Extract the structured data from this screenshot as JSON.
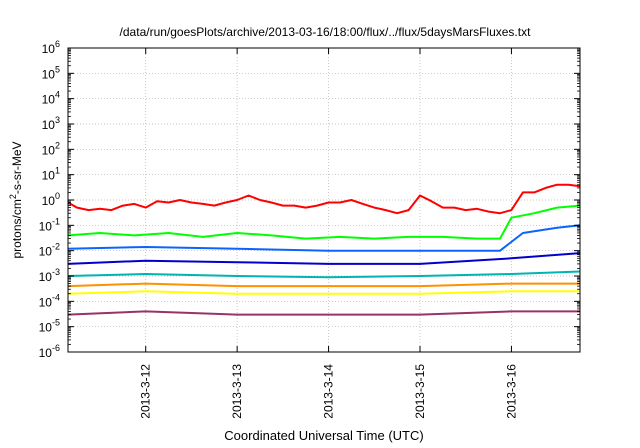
{
  "chart_data": {
    "type": "line",
    "title": "/data/run/goesPlots/archive/2013-03-16/18:00/flux/../flux/5daysMarsFluxes.txt",
    "xlabel": "Coordinated Universal Time (UTC)",
    "ylabel": {
      "pre": "protons/cm",
      "sup": "2",
      "post": "-s-sr-MeV"
    },
    "y_scale": "log",
    "ylim_exp": [
      -6,
      6
    ],
    "y_ticks": [
      {
        "base": "10",
        "exp": "-6"
      },
      {
        "base": "10",
        "exp": "-5"
      },
      {
        "base": "10",
        "exp": "-4"
      },
      {
        "base": "10",
        "exp": "-3"
      },
      {
        "base": "10",
        "exp": "-2"
      },
      {
        "base": "10",
        "exp": "-1"
      },
      {
        "base": "10",
        "exp": "0"
      },
      {
        "base": "10",
        "exp": "1"
      },
      {
        "base": "10",
        "exp": "2"
      },
      {
        "base": "10",
        "exp": "3"
      },
      {
        "base": "10",
        "exp": "4"
      },
      {
        "base": "10",
        "exp": "5"
      },
      {
        "base": "10",
        "exp": "6"
      }
    ],
    "xlim": [
      "2013-03-11 03:36",
      "2013-03-16 18:00"
    ],
    "x_ticks": [
      {
        "value": "2013-03-12",
        "label": "2013-3-12"
      },
      {
        "value": "2013-03-13",
        "label": "2013-3-13"
      },
      {
        "value": "2013-03-14",
        "label": "2013-3-14"
      },
      {
        "value": "2013-03-15",
        "label": "2013-3-15"
      },
      {
        "value": "2013-03-16",
        "label": "2013-3-16"
      }
    ],
    "grid": true,
    "legend": "none",
    "series": [
      {
        "color": "#ff0000",
        "x": [
          "2013-03-11 03:36",
          "2013-03-11 06:00",
          "2013-03-11 09:00",
          "2013-03-11 12:00",
          "2013-03-11 15:00",
          "2013-03-11 18:00",
          "2013-03-11 21:00",
          "2013-03-12 00:00",
          "2013-03-12 03:00",
          "2013-03-12 06:00",
          "2013-03-12 09:00",
          "2013-03-12 12:00",
          "2013-03-12 15:00",
          "2013-03-12 18:00",
          "2013-03-12 21:00",
          "2013-03-13 00:00",
          "2013-03-13 03:00",
          "2013-03-13 06:00",
          "2013-03-13 09:00",
          "2013-03-13 12:00",
          "2013-03-13 15:00",
          "2013-03-13 18:00",
          "2013-03-13 21:00",
          "2013-03-14 00:00",
          "2013-03-14 03:00",
          "2013-03-14 06:00",
          "2013-03-14 09:00",
          "2013-03-14 12:00",
          "2013-03-14 15:00",
          "2013-03-14 18:00",
          "2013-03-14 21:00",
          "2013-03-15 00:00",
          "2013-03-15 03:00",
          "2013-03-15 06:00",
          "2013-03-15 09:00",
          "2013-03-15 12:00",
          "2013-03-15 15:00",
          "2013-03-15 18:00",
          "2013-03-15 21:00",
          "2013-03-16 00:00",
          "2013-03-16 03:00",
          "2013-03-16 06:00",
          "2013-03-16 09:00",
          "2013-03-16 12:00",
          "2013-03-16 15:00",
          "2013-03-16 18:00"
        ],
        "y": [
          0.8,
          0.5,
          0.4,
          0.45,
          0.4,
          0.6,
          0.7,
          0.5,
          0.9,
          0.8,
          1.0,
          0.8,
          0.7,
          0.6,
          0.8,
          1.0,
          1.5,
          1.0,
          0.8,
          0.6,
          0.6,
          0.5,
          0.6,
          0.8,
          0.8,
          1.0,
          0.7,
          0.5,
          0.4,
          0.3,
          0.4,
          1.5,
          0.9,
          0.5,
          0.5,
          0.4,
          0.45,
          0.35,
          0.3,
          0.4,
          2.0,
          2.0,
          3.0,
          4.0,
          4.0,
          3.5
        ]
      },
      {
        "color": "#00ff00",
        "x": [
          "2013-03-11 03:36",
          "2013-03-11 12:00",
          "2013-03-11 21:00",
          "2013-03-12 06:00",
          "2013-03-12 15:00",
          "2013-03-13 00:00",
          "2013-03-13 09:00",
          "2013-03-13 18:00",
          "2013-03-14 03:00",
          "2013-03-14 12:00",
          "2013-03-14 21:00",
          "2013-03-15 06:00",
          "2013-03-15 15:00",
          "2013-03-15 21:00",
          "2013-03-16 00:00",
          "2013-03-16 06:00",
          "2013-03-16 12:00",
          "2013-03-16 18:00"
        ],
        "y": [
          0.04,
          0.05,
          0.04,
          0.05,
          0.035,
          0.05,
          0.04,
          0.03,
          0.035,
          0.03,
          0.035,
          0.035,
          0.03,
          0.03,
          0.2,
          0.3,
          0.5,
          0.6
        ]
      },
      {
        "color": "#0a64ff",
        "x": [
          "2013-03-11 03:36",
          "2013-03-12 00:00",
          "2013-03-13 00:00",
          "2013-03-14 00:00",
          "2013-03-15 00:00",
          "2013-03-15 21:00",
          "2013-03-16 03:00",
          "2013-03-16 12:00",
          "2013-03-16 18:00"
        ],
        "y": [
          0.012,
          0.014,
          0.012,
          0.01,
          0.01,
          0.01,
          0.05,
          0.08,
          0.1
        ]
      },
      {
        "color": "#0000cc",
        "x": [
          "2013-03-11 03:36",
          "2013-03-12 00:00",
          "2013-03-13 00:00",
          "2013-03-14 00:00",
          "2013-03-15 00:00",
          "2013-03-16 00:00",
          "2013-03-16 18:00"
        ],
        "y": [
          0.003,
          0.004,
          0.0035,
          0.003,
          0.003,
          0.005,
          0.008
        ]
      },
      {
        "color": "#00b4b4",
        "x": [
          "2013-03-11 03:36",
          "2013-03-12 00:00",
          "2013-03-13 00:00",
          "2013-03-14 00:00",
          "2013-03-15 00:00",
          "2013-03-16 00:00",
          "2013-03-16 18:00"
        ],
        "y": [
          0.001,
          0.0012,
          0.001,
          0.0009,
          0.001,
          0.0012,
          0.0015
        ]
      },
      {
        "color": "#ff9000",
        "x": [
          "2013-03-11 03:36",
          "2013-03-12 00:00",
          "2013-03-13 00:00",
          "2013-03-14 00:00",
          "2013-03-15 00:00",
          "2013-03-16 00:00",
          "2013-03-16 18:00"
        ],
        "y": [
          0.0004,
          0.0005,
          0.0004,
          0.0004,
          0.0004,
          0.0005,
          0.0005
        ]
      },
      {
        "color": "#ffff00",
        "x": [
          "2013-03-11 03:36",
          "2013-03-12 00:00",
          "2013-03-13 00:00",
          "2013-03-14 00:00",
          "2013-03-15 00:00",
          "2013-03-16 00:00",
          "2013-03-16 18:00"
        ],
        "y": [
          0.0002,
          0.00025,
          0.0002,
          0.0002,
          0.0002,
          0.00025,
          0.00025
        ]
      },
      {
        "color": "#993366",
        "x": [
          "2013-03-11 03:36",
          "2013-03-12 00:00",
          "2013-03-13 00:00",
          "2013-03-14 00:00",
          "2013-03-15 00:00",
          "2013-03-16 00:00",
          "2013-03-16 18:00"
        ],
        "y": [
          3e-05,
          4e-05,
          3e-05,
          3e-05,
          3e-05,
          4e-05,
          4e-05
        ]
      }
    ]
  }
}
